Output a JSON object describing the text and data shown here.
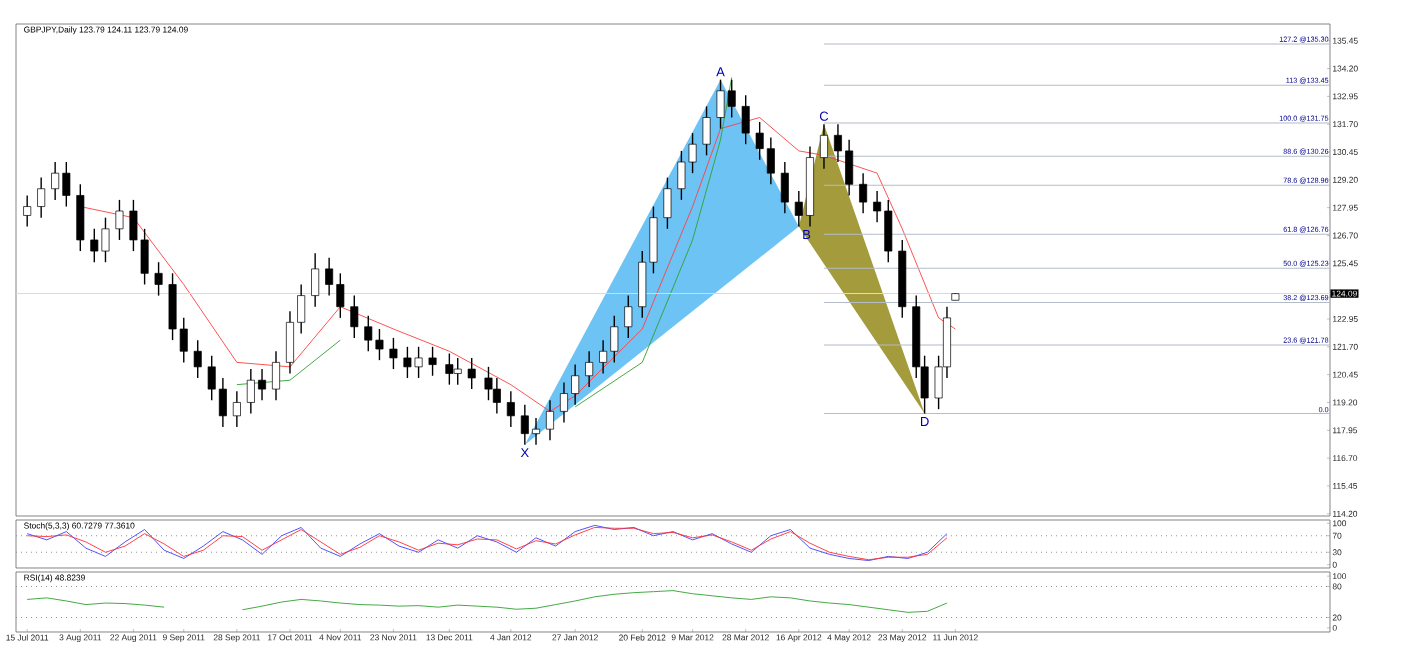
{
  "chart_data": [
    {
      "type": "candlestick",
      "title": "GBPJPY,Daily 123.79 124.11 123.79 124.09",
      "x": [
        "2011-07-15",
        "2011-07-20",
        "2011-07-25",
        "2011-07-29",
        "2011-08-03",
        "2011-08-08",
        "2011-08-12",
        "2011-08-17",
        "2011-08-22",
        "2011-08-26",
        "2011-08-31",
        "2011-09-05",
        "2011-09-09",
        "2011-09-14",
        "2011-09-19",
        "2011-09-23",
        "2011-09-28",
        "2011-10-03",
        "2011-10-07",
        "2011-10-12",
        "2011-10-17",
        "2011-10-21",
        "2011-10-26",
        "2011-10-31",
        "2011-11-04",
        "2011-11-09",
        "2011-11-14",
        "2011-11-18",
        "2011-11-23",
        "2011-11-28",
        "2011-12-02",
        "2011-12-07",
        "2011-12-13",
        "2011-12-16",
        "2011-12-21",
        "2011-12-27",
        "2011-12-30",
        "2012-01-04",
        "2012-01-09",
        "2012-01-13",
        "2012-01-18",
        "2012-01-23",
        "2012-01-27",
        "2012-02-01",
        "2012-02-06",
        "2012-02-10",
        "2012-02-15",
        "2012-02-20",
        "2012-02-24",
        "2012-02-29",
        "2012-03-05",
        "2012-03-09",
        "2012-03-14",
        "2012-03-19",
        "2012-03-23",
        "2012-03-28",
        "2012-04-02",
        "2012-04-06",
        "2012-04-11",
        "2012-04-16",
        "2012-04-20",
        "2012-04-25",
        "2012-04-30",
        "2012-05-04",
        "2012-05-09",
        "2012-05-14",
        "2012-05-18",
        "2012-05-23",
        "2012-05-28",
        "2012-05-31",
        "2012-06-05",
        "2012-06-08",
        "2012-06-11"
      ],
      "ohlc": [
        [
          127.6,
          128.5,
          127.1,
          128.0
        ],
        [
          128.0,
          129.3,
          127.5,
          128.8
        ],
        [
          128.8,
          130.0,
          128.3,
          129.5
        ],
        [
          129.5,
          130.0,
          128.0,
          128.5
        ],
        [
          128.5,
          129.0,
          126.0,
          126.5
        ],
        [
          126.5,
          127.0,
          125.5,
          126.0
        ],
        [
          126.0,
          127.5,
          125.5,
          127.0
        ],
        [
          127.0,
          128.3,
          126.5,
          127.8
        ],
        [
          127.8,
          128.3,
          126.0,
          126.5
        ],
        [
          126.5,
          127.0,
          124.5,
          125.0
        ],
        [
          125.0,
          125.5,
          124.0,
          124.5
        ],
        [
          124.5,
          125.0,
          122.0,
          122.5
        ],
        [
          122.5,
          123.0,
          121.0,
          121.5
        ],
        [
          121.5,
          122.0,
          120.3,
          120.8
        ],
        [
          120.8,
          121.3,
          119.3,
          119.8
        ],
        [
          119.8,
          120.3,
          118.1,
          118.6
        ],
        [
          118.6,
          119.7,
          118.1,
          119.2
        ],
        [
          119.2,
          120.7,
          118.7,
          120.2
        ],
        [
          120.2,
          120.7,
          119.3,
          119.8
        ],
        [
          119.8,
          121.5,
          119.3,
          121.0
        ],
        [
          121.0,
          123.3,
          120.5,
          122.8
        ],
        [
          122.8,
          124.5,
          122.3,
          124.0
        ],
        [
          124.0,
          125.9,
          123.5,
          125.2
        ],
        [
          125.2,
          125.7,
          124.0,
          124.5
        ],
        [
          124.5,
          125.0,
          123.0,
          123.5
        ],
        [
          123.5,
          124.0,
          122.1,
          122.6
        ],
        [
          122.6,
          123.1,
          121.5,
          122.0
        ],
        [
          122.0,
          122.5,
          121.1,
          121.6
        ],
        [
          121.6,
          122.1,
          120.7,
          121.2
        ],
        [
          121.2,
          121.7,
          120.3,
          120.8
        ],
        [
          120.8,
          121.7,
          120.3,
          121.2
        ],
        [
          121.2,
          121.7,
          120.4,
          120.9
        ],
        [
          120.9,
          121.4,
          120.0,
          120.5
        ],
        [
          120.5,
          121.2,
          120.0,
          120.7
        ],
        [
          120.7,
          121.2,
          119.8,
          120.3
        ],
        [
          120.3,
          120.8,
          119.3,
          119.8
        ],
        [
          119.8,
          120.3,
          118.7,
          119.2
        ],
        [
          119.2,
          119.7,
          118.1,
          118.6
        ],
        [
          118.6,
          119.1,
          117.3,
          117.8
        ],
        [
          117.8,
          118.5,
          117.3,
          118.0
        ],
        [
          118.0,
          119.3,
          117.5,
          118.8
        ],
        [
          118.8,
          120.1,
          118.3,
          119.6
        ],
        [
          119.6,
          120.9,
          119.1,
          120.4
        ],
        [
          120.4,
          121.5,
          119.9,
          121.0
        ],
        [
          121.0,
          122.0,
          120.5,
          121.5
        ],
        [
          121.5,
          123.1,
          121.0,
          122.6
        ],
        [
          122.6,
          124.0,
          122.1,
          123.5
        ],
        [
          123.5,
          126.0,
          123.0,
          125.5
        ],
        [
          125.5,
          128.0,
          125.0,
          127.5
        ],
        [
          127.5,
          129.3,
          127.0,
          128.8
        ],
        [
          128.8,
          130.5,
          128.3,
          130.0
        ],
        [
          130.0,
          131.3,
          129.5,
          130.8
        ],
        [
          130.8,
          132.5,
          130.3,
          132.0
        ],
        [
          132.0,
          133.7,
          131.5,
          133.2
        ],
        [
          133.2,
          133.7,
          132.0,
          132.5
        ],
        [
          132.5,
          133.0,
          130.8,
          131.3
        ],
        [
          131.3,
          131.8,
          130.1,
          130.6
        ],
        [
          130.6,
          131.1,
          129.0,
          129.5
        ],
        [
          129.5,
          130.0,
          127.7,
          128.2
        ],
        [
          128.2,
          128.7,
          127.1,
          127.6
        ],
        [
          127.6,
          130.7,
          127.1,
          130.2
        ],
        [
          130.2,
          131.7,
          129.7,
          131.2
        ],
        [
          131.2,
          131.7,
          130.0,
          130.5
        ],
        [
          130.5,
          131.0,
          128.5,
          129.0
        ],
        [
          129.0,
          129.5,
          127.7,
          128.2
        ],
        [
          128.2,
          128.7,
          127.3,
          127.8
        ],
        [
          127.8,
          128.3,
          125.5,
          126.0
        ],
        [
          126.0,
          126.5,
          123.0,
          123.5
        ],
        [
          123.5,
          124.0,
          120.3,
          120.8
        ],
        [
          120.8,
          121.3,
          118.7,
          119.4
        ],
        [
          119.4,
          121.3,
          118.9,
          120.8
        ],
        [
          120.8,
          123.5,
          120.3,
          123.0
        ],
        [
          123.79,
          124.11,
          123.79,
          124.09
        ]
      ],
      "series": [
        {
          "type": "line",
          "color": "#ff4040",
          "x": [
            "2011-08-03",
            "2011-08-22",
            "2011-09-09",
            "2011-09-28",
            "2011-10-17",
            "2011-11-04",
            "2011-11-23",
            "2011-12-13",
            "2012-01-04",
            "2012-01-18",
            "2012-01-27",
            "2012-02-20",
            "2012-03-09",
            "2012-03-19",
            "2012-04-02",
            "2012-04-16",
            "2012-04-25",
            "2012-05-14",
            "2012-05-23",
            "2012-06-05",
            "2012-06-11"
          ],
          "values": [
            128.0,
            127.5,
            124.5,
            121.0,
            120.8,
            123.5,
            122.5,
            121.5,
            120.0,
            118.8,
            119.5,
            122.5,
            128.0,
            131.5,
            132.0,
            130.5,
            130.3,
            129.5,
            127.0,
            123.0,
            122.5
          ]
        },
        {
          "type": "line",
          "color": "#30a030",
          "x": [
            "2011-09-28",
            "2011-10-17",
            "2011-11-04",
            "2011-11-10",
            "2012-01-27",
            "2012-02-20",
            "2012-03-09",
            "2012-03-19",
            "2012-03-23"
          ],
          "values": [
            120.0,
            120.2,
            122.0,
            null,
            119.0,
            121.0,
            126.5,
            131.0,
            133.8
          ]
        }
      ],
      "annotations": [
        {
          "text": "X",
          "x": "2012-01-09",
          "y": 117.3
        },
        {
          "text": "A",
          "x": "2012-03-19",
          "y": 133.7
        },
        {
          "text": "B",
          "x": "2012-04-16",
          "y": 127.1
        },
        {
          "text": "C",
          "x": "2012-04-25",
          "y": 131.7
        },
        {
          "text": "D",
          "x": "2012-05-31",
          "y": 118.7
        },
        {
          "text": "0.0",
          "x": "2012-10-23",
          "y": 118.7
        },
        {
          "text": "23.6 @121.78",
          "x": "2012-10-23",
          "y": 121.78
        },
        {
          "text": "38.2 @123.69",
          "x": "2012-10-23",
          "y": 123.69
        },
        {
          "text": "50.0 @125.23",
          "x": "2012-10-23",
          "y": 125.23
        },
        {
          "text": "61.8 @126.76",
          "x": "2012-10-23",
          "y": 126.76
        },
        {
          "text": "78.6 @128.96",
          "x": "2012-10-23",
          "y": 128.96
        },
        {
          "text": "88.6 @130.26",
          "x": "2012-10-23",
          "y": 130.26
        },
        {
          "text": "100.0 @131.75",
          "x": "2012-10-23",
          "y": 131.75
        },
        {
          "text": "113 @133.45",
          "x": "2012-10-23",
          "y": 133.45
        },
        {
          "text": "127.2 @135.30",
          "x": "2012-10-23",
          "y": 135.3
        }
      ],
      "ref_lines": [
        {
          "axis": "y",
          "value": 118.7,
          "color": "#b4bcc8"
        },
        {
          "axis": "y",
          "value": 121.78,
          "color": "#b4bcc8"
        },
        {
          "axis": "y",
          "value": 123.69,
          "color": "#b4bcc8"
        },
        {
          "axis": "y",
          "value": 125.23,
          "color": "#b4bcc8"
        },
        {
          "axis": "y",
          "value": 126.76,
          "color": "#b4bcc8"
        },
        {
          "axis": "y",
          "value": 128.96,
          "color": "#b4bcc8"
        },
        {
          "axis": "y",
          "value": 130.26,
          "color": "#b4bcc8"
        },
        {
          "axis": "y",
          "value": 131.75,
          "color": "#b4bcc8"
        },
        {
          "axis": "y",
          "value": 133.45,
          "color": "#b4bcc8"
        },
        {
          "axis": "y",
          "value": 135.3,
          "color": "#b4bcc8"
        },
        {
          "axis": "y",
          "value": 124.09,
          "label": "124.09",
          "color": "#f0d0d0"
        }
      ],
      "xlim": [
        "2011-07-11",
        "2012-10-23"
      ],
      "ylim": [
        114.1,
        136.2
      ],
      "yticks": [
        135.45,
        {
          "value": 134.2,
          "label": "134.20"
        },
        132.95,
        {
          "value": 131.7,
          "label": "131.70"
        },
        130.45,
        {
          "value": 129.2,
          "label": "129.20"
        },
        127.95,
        {
          "value": 126.7,
          "label": "126.70"
        },
        125.45,
        122.95,
        {
          "value": 121.7,
          "label": "121.70"
        },
        120.45,
        {
          "value": 119.2,
          "label": "119.20"
        },
        117.95,
        {
          "value": 116.7,
          "label": "116.70"
        },
        115.45,
        {
          "value": 114.2,
          "label": "114.20"
        }
      ],
      "tick_labels": "y"
    },
    {
      "type": "line",
      "title": "Stoch(5,3,3) 60.7279 77.3610",
      "x": [
        "2011-07-15",
        "2011-07-22",
        "2011-07-29",
        "2011-08-05",
        "2011-08-12",
        "2011-08-19",
        "2011-08-26",
        "2011-09-02",
        "2011-09-09",
        "2011-09-16",
        "2011-09-23",
        "2011-09-30",
        "2011-10-07",
        "2011-10-14",
        "2011-10-21",
        "2011-10-28",
        "2011-11-04",
        "2011-11-11",
        "2011-11-18",
        "2011-11-25",
        "2011-12-02",
        "2011-12-09",
        "2011-12-16",
        "2011-12-23",
        "2011-12-30",
        "2012-01-06",
        "2012-01-13",
        "2012-01-20",
        "2012-01-27",
        "2012-02-03",
        "2012-02-10",
        "2012-02-17",
        "2012-02-24",
        "2012-03-02",
        "2012-03-09",
        "2012-03-16",
        "2012-03-23",
        "2012-03-30",
        "2012-04-06",
        "2012-04-13",
        "2012-04-20",
        "2012-04-27",
        "2012-05-04",
        "2012-05-11",
        "2012-05-18",
        "2012-05-25",
        "2012-06-01",
        "2012-06-08"
      ],
      "series": [
        {
          "color": "#4040ff",
          "values": [
            75,
            60,
            80,
            40,
            20,
            55,
            85,
            35,
            15,
            45,
            80,
            60,
            25,
            70,
            90,
            40,
            20,
            50,
            75,
            45,
            30,
            60,
            40,
            70,
            55,
            30,
            65,
            45,
            80,
            95,
            85,
            90,
            70,
            80,
            60,
            75,
            50,
            30,
            70,
            85,
            40,
            25,
            15,
            10,
            20,
            15,
            30,
            75
          ]
        },
        {
          "color": "#ff3030",
          "values": [
            70,
            68,
            72,
            55,
            30,
            45,
            75,
            50,
            20,
            35,
            70,
            68,
            35,
            60,
            85,
            55,
            25,
            42,
            70,
            55,
            35,
            52,
            48,
            62,
            60,
            38,
            58,
            50,
            72,
            90,
            88,
            88,
            75,
            78,
            65,
            72,
            55,
            35,
            62,
            80,
            52,
            30,
            20,
            12,
            18,
            18,
            25,
            65
          ]
        }
      ],
      "ref_lines": [
        {
          "axis": "y",
          "value": 70,
          "color": "#909090",
          "line_style": "dotted"
        },
        {
          "axis": "y",
          "value": 30,
          "color": "#909090",
          "line_style": "dotted"
        }
      ],
      "xlim": [
        "2011-07-11",
        "2012-10-23"
      ],
      "ylim": [
        -8,
        108
      ],
      "yticks": [
        100,
        70,
        30,
        0
      ],
      "tick_labels": "y"
    },
    {
      "type": "line",
      "title": "RSI(14) 48.8239",
      "x": [
        "2011-07-15",
        "2011-07-22",
        "2011-07-29",
        "2011-08-05",
        "2011-08-12",
        "2011-08-19",
        "2011-08-26",
        "2011-09-02",
        "2011-09-09",
        "2011-09-16",
        "2011-09-23",
        "2011-09-30",
        "2011-10-07",
        "2011-10-14",
        "2011-10-21",
        "2011-10-28",
        "2011-11-04",
        "2011-11-11",
        "2011-11-18",
        "2011-11-25",
        "2011-12-02",
        "2011-12-09",
        "2011-12-16",
        "2011-12-23",
        "2011-12-30",
        "2012-01-06",
        "2012-01-13",
        "2012-01-20",
        "2012-01-27",
        "2012-02-03",
        "2012-02-10",
        "2012-02-17",
        "2012-02-24",
        "2012-03-02",
        "2012-03-09",
        "2012-03-16",
        "2012-03-23",
        "2012-03-30",
        "2012-04-06",
        "2012-04-13",
        "2012-04-20",
        "2012-04-27",
        "2012-05-04",
        "2012-05-11",
        "2012-05-18",
        "2012-05-25",
        "2012-06-01",
        "2012-06-08"
      ],
      "series": [
        {
          "color": "#30a030",
          "values": [
            55,
            58,
            52,
            45,
            48,
            47,
            44,
            40,
            null,
            null,
            null,
            35,
            42,
            50,
            55,
            52,
            48,
            45,
            44,
            42,
            43,
            40,
            44,
            42,
            40,
            36,
            38,
            45,
            52,
            60,
            65,
            68,
            70,
            72,
            66,
            62,
            58,
            55,
            60,
            58,
            52,
            48,
            45,
            40,
            35,
            30,
            32,
            48
          ]
        }
      ],
      "ref_lines": [
        {
          "axis": "y",
          "value": 80,
          "color": "#909090",
          "line_style": "dotted"
        },
        {
          "axis": "y",
          "value": 20,
          "color": "#909090",
          "line_style": "dotted"
        }
      ],
      "xlim": [
        "2011-07-11",
        "2012-10-23"
      ],
      "ylim": [
        -8,
        108
      ],
      "yticks": [
        100,
        80,
        20,
        0
      ],
      "xticks": [
        {
          "value": "2011-07-15",
          "label": "15 Jul 2011"
        },
        {
          "value": "2011-08-03",
          "label": "3 Aug 2011"
        },
        {
          "value": "2011-08-22",
          "label": "22 Aug 2011"
        },
        {
          "value": "2011-09-09",
          "label": "9 Sep 2011"
        },
        {
          "value": "2011-09-28",
          "label": "28 Sep 2011"
        },
        {
          "value": "2011-10-17",
          "label": "17 Oct 2011"
        },
        {
          "value": "2011-11-04",
          "label": "4 Nov 2011"
        },
        {
          "value": "2011-11-23",
          "label": "23 Nov 2011"
        },
        {
          "value": "2011-12-13",
          "label": "13 Dec 2011"
        },
        {
          "value": "2012-01-04",
          "label": "4 Jan 2012"
        },
        {
          "value": "2012-01-27",
          "label": "27 Jan 2012"
        },
        {
          "value": "2012-02-20",
          "label": "20 Feb 2012"
        },
        {
          "value": "2012-03-09",
          "label": "9 Mar 2012"
        },
        {
          "value": "2012-03-28",
          "label": "28 Mar 2012"
        },
        {
          "value": "2012-04-16",
          "label": "16 Apr 2012"
        },
        {
          "value": "2012-05-04",
          "label": "4 May 2012"
        },
        {
          "value": "2012-05-23",
          "label": "23 May 2012"
        },
        {
          "value": "2012-06-11",
          "label": "11 Jun 2012"
        }
      ]
    }
  ]
}
